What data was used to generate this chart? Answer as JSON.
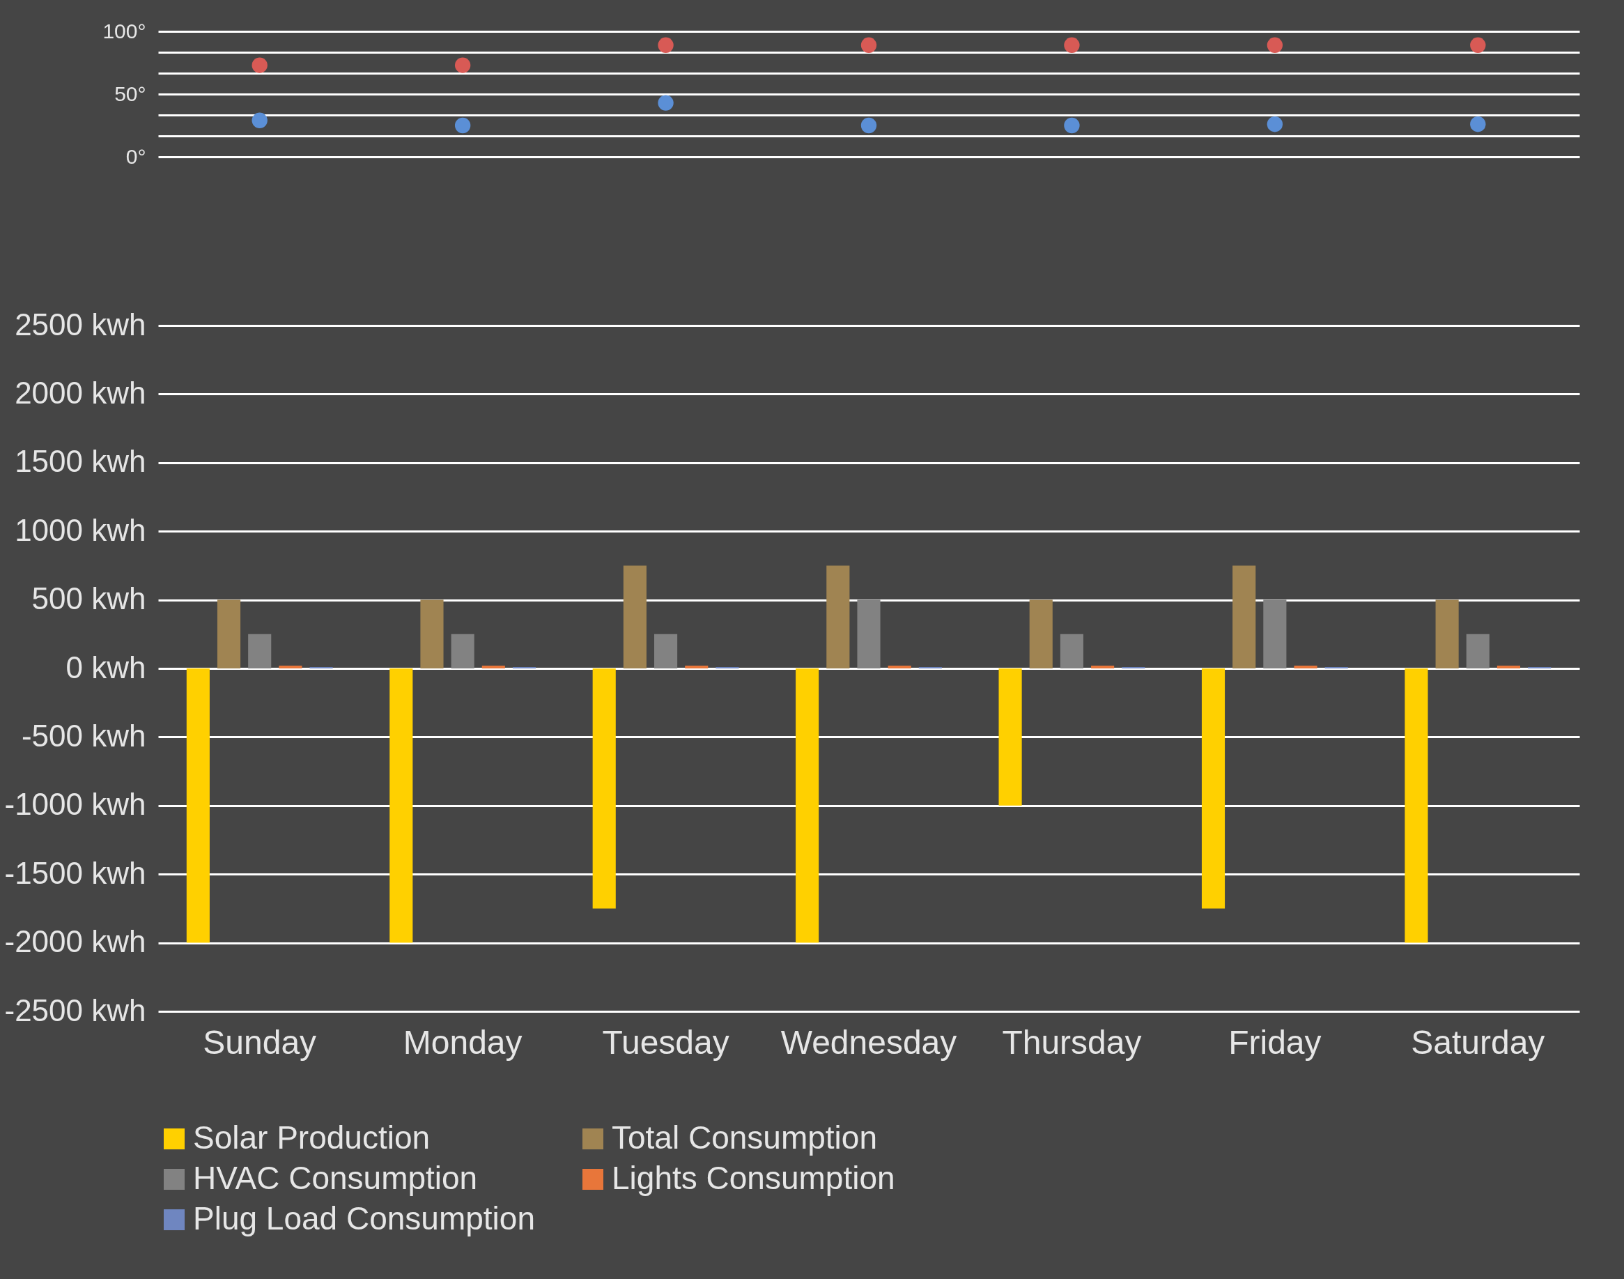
{
  "chart_data": [
    {
      "type": "scatter",
      "categories": [
        null,
        null,
        null,
        null,
        null,
        null,
        null
      ],
      "ylim": [
        0,
        100
      ],
      "yticks": [
        {
          "value": 0,
          "label": "0°"
        },
        {
          "value": 16.667,
          "label": null
        },
        {
          "value": 33.333,
          "label": null
        },
        {
          "value": 50,
          "label": "50°"
        },
        {
          "value": 66.667,
          "label": null
        },
        {
          "value": 83.333,
          "label": null
        },
        {
          "value": 100,
          "label": "100°"
        }
      ],
      "grid": true,
      "marker": "circle",
      "legend": false,
      "series": [
        {
          "color": "#d85a55",
          "values": [
            73,
            73,
            89,
            89,
            89,
            89,
            89
          ]
        },
        {
          "color": "#5b8fd6",
          "values": [
            29,
            25,
            43,
            25,
            25,
            26,
            26
          ]
        }
      ]
    },
    {
      "type": "bar",
      "categories": [
        "Sunday",
        "Monday",
        "Tuesday",
        "Wednesday",
        "Thursday",
        "Friday",
        "Saturday"
      ],
      "ylim": [
        -2500,
        2500
      ],
      "yticks": [
        {
          "value": -2500,
          "label": "-2500 kwh"
        },
        {
          "value": -2000,
          "label": "-2000 kwh"
        },
        {
          "value": -1500,
          "label": "-1500 kwh"
        },
        {
          "value": -1000,
          "label": "-1000 kwh"
        },
        {
          "value": -500,
          "label": "-500 kwh"
        },
        {
          "value": 0,
          "label": "0 kwh"
        },
        {
          "value": 500,
          "label": "500 kwh"
        },
        {
          "value": 1000,
          "label": "1000 kwh"
        },
        {
          "value": 1500,
          "label": "1500 kwh"
        },
        {
          "value": 2000,
          "label": "2000 kwh"
        },
        {
          "value": 2500,
          "label": "2500 kwh"
        }
      ],
      "grid": "y",
      "legend": "bottom",
      "series": [
        {
          "name": "Solar Production",
          "color": "#ffd000",
          "values": [
            -2000,
            -2000,
            -1750,
            -2000,
            -1000,
            -1750,
            -2000
          ]
        },
        {
          "name": "Total Consumption",
          "color": "#a08452",
          "values": [
            500,
            500,
            750,
            750,
            500,
            750,
            500
          ]
        },
        {
          "name": "HVAC Consumption",
          "color": "#828282",
          "values": [
            250,
            250,
            250,
            500,
            250,
            500,
            250
          ]
        },
        {
          "name": "Lights Consumption",
          "color": "#e8763a",
          "values": [
            20,
            20,
            20,
            20,
            20,
            20,
            20
          ]
        },
        {
          "name": "Plug Load Consumption",
          "color": "#6f86c0",
          "values": [
            10,
            10,
            10,
            10,
            10,
            10,
            10
          ]
        }
      ]
    }
  ]
}
